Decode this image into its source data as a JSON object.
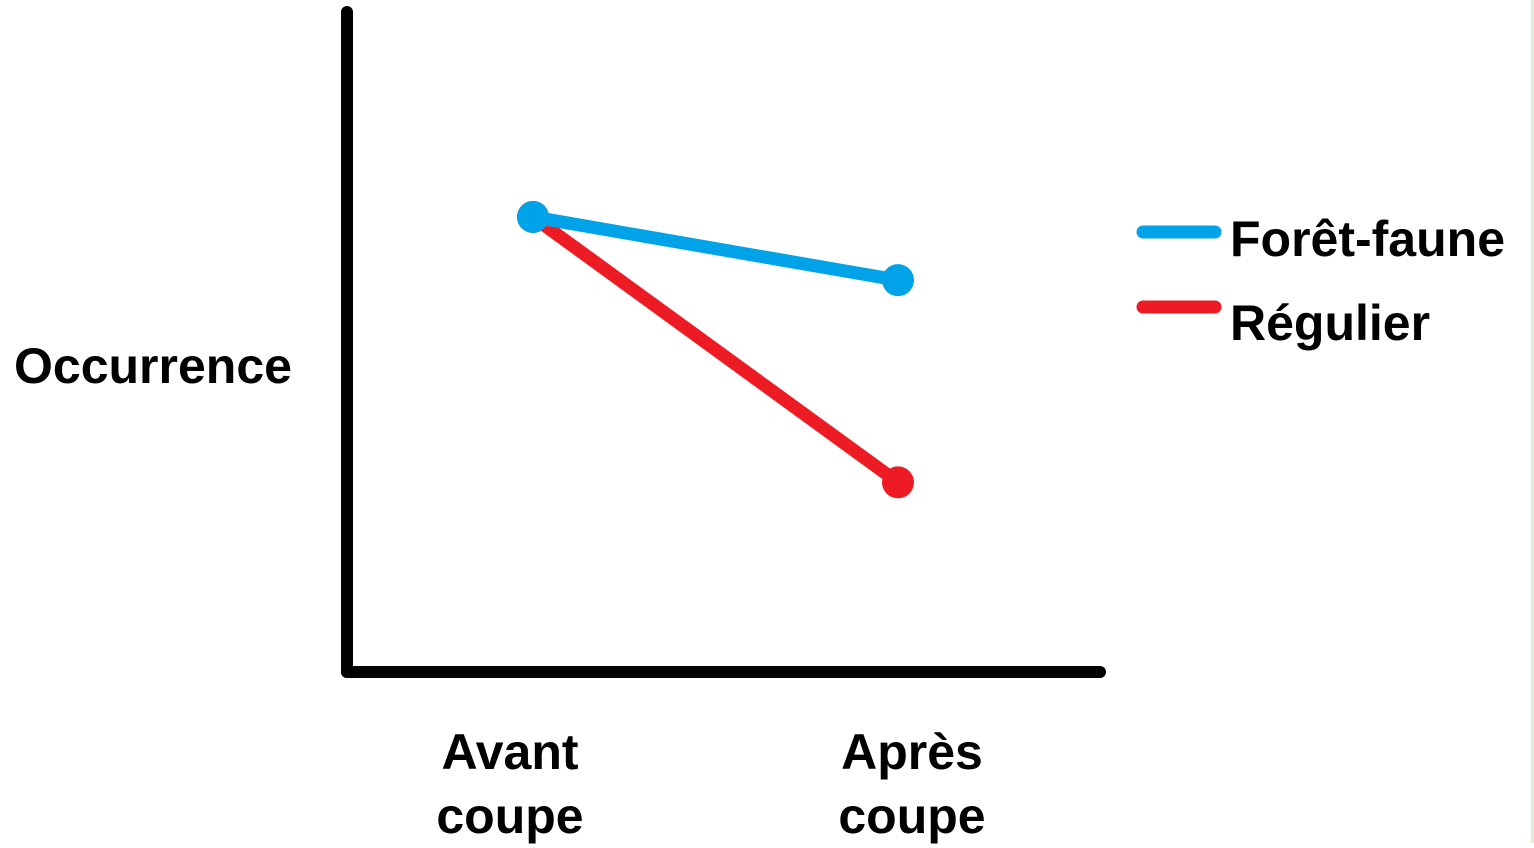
{
  "chart_data": {
    "type": "line",
    "title": "",
    "xlabel": "",
    "ylabel": "Occurrence",
    "categories": [
      [
        "Avant",
        "coupe"
      ],
      [
        "Après",
        "coupe"
      ]
    ],
    "series": [
      {
        "name": "Forêt-faune",
        "color": "#00a2e8",
        "values": [
          0.72,
          0.62
        ]
      },
      {
        "name": "Régulier",
        "color": "#ed1c24",
        "values": [
          0.72,
          0.3
        ]
      }
    ],
    "ylim": [
      0,
      1
    ],
    "grid": false,
    "y_ticks_shown": false,
    "legend": {
      "position": "right",
      "entries": [
        "Forêt-faune",
        "Régulier"
      ]
    }
  }
}
